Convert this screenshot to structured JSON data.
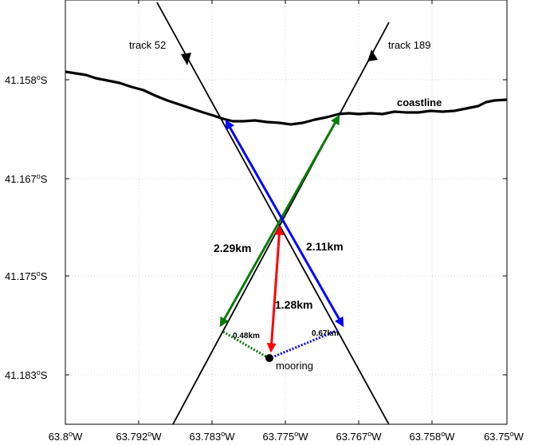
{
  "y_ticks": [
    {
      "num": "41.158",
      "sup": "o",
      "suffix": "S"
    },
    {
      "num": "41.167",
      "sup": "o",
      "suffix": "S"
    },
    {
      "num": "41.175",
      "sup": "o",
      "suffix": "S"
    },
    {
      "num": "41.183",
      "sup": "o",
      "suffix": "S"
    }
  ],
  "x_ticks": [
    {
      "num": "63.8",
      "sup": "o",
      "suffix": "W"
    },
    {
      "num": "63.792",
      "sup": "o",
      "suffix": "W"
    },
    {
      "num": "63.783",
      "sup": "o",
      "suffix": "W"
    },
    {
      "num": "63.775",
      "sup": "o",
      "suffix": "W"
    },
    {
      "num": "63.767",
      "sup": "o",
      "suffix": "W"
    },
    {
      "num": "63.758",
      "sup": "o",
      "suffix": "W"
    },
    {
      "num": "63.75",
      "sup": "o",
      "suffix": "W"
    }
  ],
  "labels": {
    "track52": "track 52",
    "track189": "track 189",
    "coastline": "coastline",
    "mooring": "mooring",
    "dist_green": "2.29km",
    "dist_blue": "2.11km",
    "dist_red": "1.28km",
    "perp_green": "0.48km",
    "perp_blue": "0.67km"
  },
  "colors": {
    "green": "#0b7a0b",
    "blue": "#0000ff",
    "red": "#ff0000",
    "line": "#000000"
  }
}
